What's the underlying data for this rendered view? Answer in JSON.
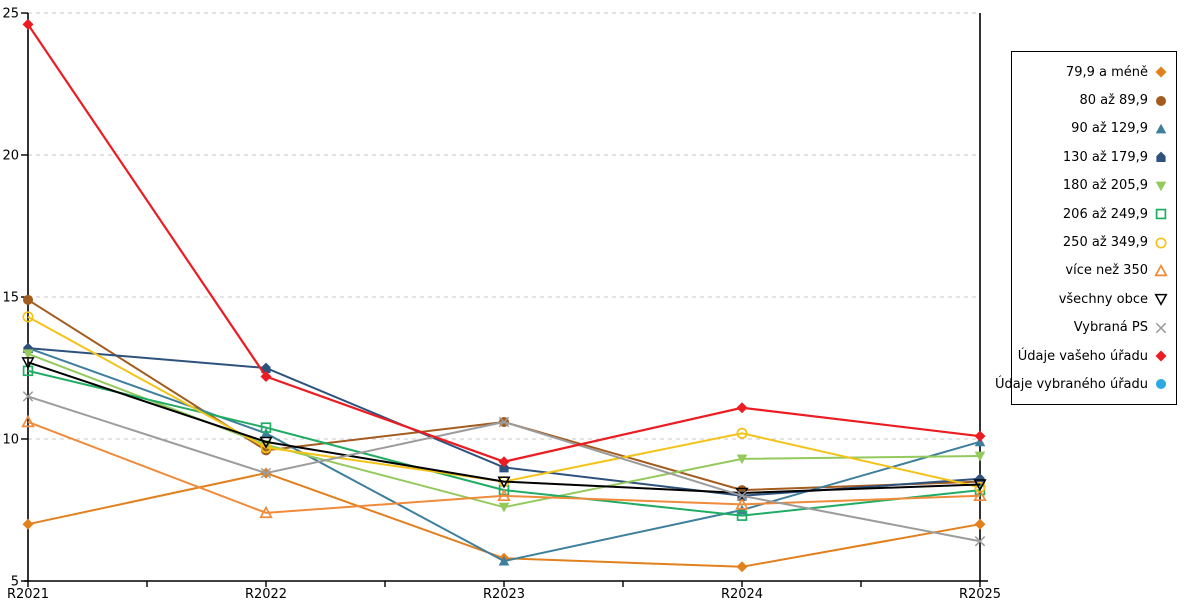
{
  "chart_data": {
    "type": "line",
    "title": "",
    "xlabel": "",
    "ylabel": "",
    "categories": [
      "R2021",
      "R2022",
      "R2023",
      "R2024",
      "R2025"
    ],
    "ylim": [
      5,
      25
    ],
    "yticks": [
      5,
      10,
      15,
      20,
      25
    ],
    "grid": "horizontal-dashed",
    "legend_position": "right",
    "series": [
      {
        "name": "79,9 a méně",
        "marker": "diamond",
        "color": "#E2801E",
        "values": [
          7.0,
          8.8,
          5.8,
          5.5,
          7.0
        ]
      },
      {
        "name": "80 až 89,9",
        "marker": "circle",
        "color": "#A35B1E",
        "values": [
          14.9,
          9.6,
          10.6,
          8.2,
          8.5
        ]
      },
      {
        "name": "90 až 129,9",
        "marker": "triangle-up",
        "color": "#3E7F9C",
        "values": [
          13.2,
          10.2,
          5.7,
          7.5,
          9.9
        ]
      },
      {
        "name": "130 až 179,9",
        "marker": "pentagon",
        "color": "#2E527D",
        "values": [
          13.2,
          12.5,
          9.0,
          8.0,
          8.6
        ]
      },
      {
        "name": "180 až 205,9",
        "marker": "triangle-down",
        "color": "#94C95C",
        "values": [
          13.0,
          9.8,
          7.6,
          9.3,
          9.4
        ]
      },
      {
        "name": "206 až 249,9",
        "marker": "square-open",
        "color": "#21AC64",
        "values": [
          12.4,
          10.4,
          8.2,
          7.3,
          8.2
        ]
      },
      {
        "name": "250 až 349,9",
        "marker": "circle-open",
        "color": "#F3C317",
        "values": [
          14.3,
          9.7,
          8.5,
          10.2,
          8.3
        ]
      },
      {
        "name": "více než 350",
        "marker": "triangle-open",
        "color": "#EF8B3B",
        "values": [
          10.6,
          7.4,
          8.0,
          7.7,
          8.0
        ]
      },
      {
        "name": "všechny obce",
        "marker": "triangle-down-open",
        "color": "#000000",
        "values": [
          12.7,
          9.9,
          8.5,
          8.1,
          8.4
        ]
      },
      {
        "name": "Vybraná PS",
        "marker": "x",
        "color": "#9C9C9C",
        "values": [
          11.5,
          8.8,
          10.6,
          8.0,
          6.4
        ]
      },
      {
        "name": "Údaje vašeho úřadu",
        "marker": "diamond",
        "color": "#EB1C22",
        "values": [
          24.6,
          12.2,
          9.2,
          11.1,
          10.1
        ]
      },
      {
        "name": "Údaje vybraného úřadu",
        "marker": "circle",
        "color": "#2BA9E0",
        "values": null
      }
    ]
  }
}
